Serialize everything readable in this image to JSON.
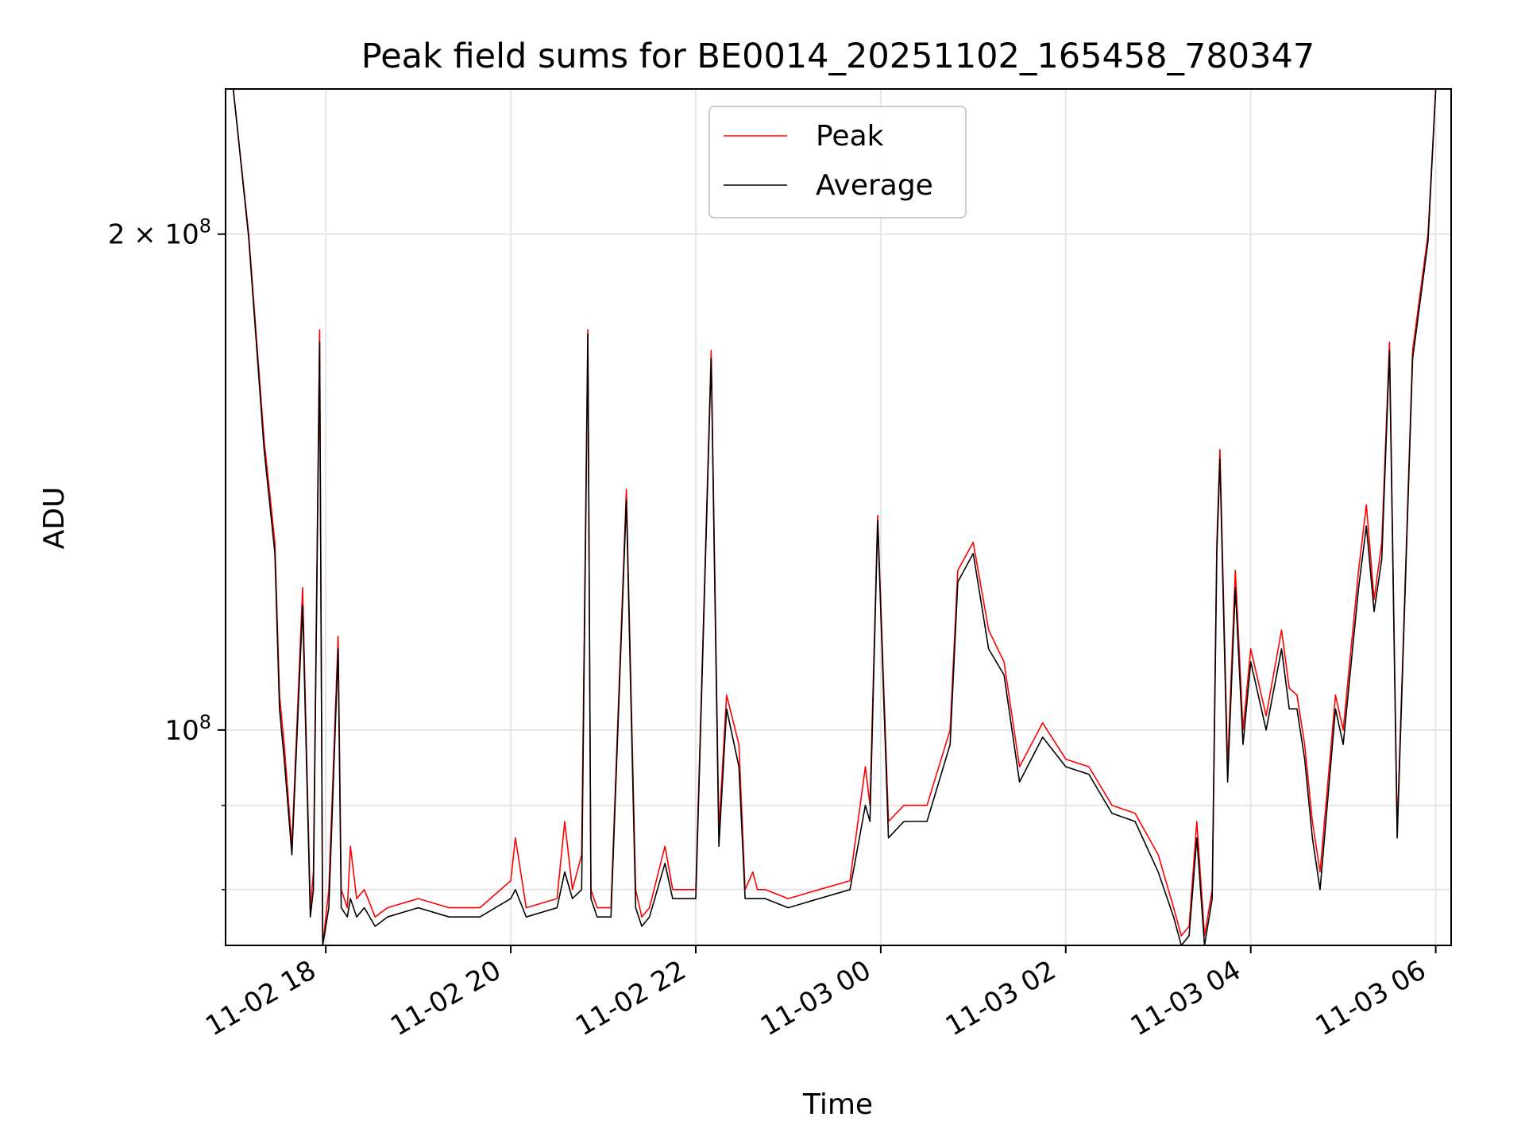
{
  "chart_data": {
    "type": "line",
    "title": "Peak field sums for BE0014_20251102_165458_780347",
    "xlabel": "Time",
    "ylabel": "ADU",
    "y_scale": "log",
    "ylim": [
      74000000,
      245000000
    ],
    "xlim": [
      "2025-11-02T16:55:00",
      "2025-11-03T06:10:00"
    ],
    "grid": true,
    "legend_position": "top-center",
    "x_ticks": [
      {
        "value": "2025-11-02T18:00:00",
        "label": "11-02 18"
      },
      {
        "value": "2025-11-02T20:00:00",
        "label": "11-02 20"
      },
      {
        "value": "2025-11-02T22:00:00",
        "label": "11-02 22"
      },
      {
        "value": "2025-11-03T00:00:00",
        "label": "11-03 00"
      },
      {
        "value": "2025-11-03T02:00:00",
        "label": "11-03 02"
      },
      {
        "value": "2025-11-03T04:00:00",
        "label": "11-03 04"
      },
      {
        "value": "2025-11-03T06:00:00",
        "label": "11-03 06"
      }
    ],
    "y_ticks": [
      {
        "value": 100000000,
        "label_base": "10",
        "label_exp": "8"
      },
      {
        "value": 200000000,
        "label_base": "2 × 10",
        "label_exp": "8"
      }
    ],
    "y_minor_gridlines": [
      80000000,
      90000000
    ],
    "series": [
      {
        "name": "Peak",
        "color": "#ff0000",
        "x": [
          "2025-11-02T17:00",
          "2025-11-02T17:10",
          "2025-11-02T17:20",
          "2025-11-02T17:27",
          "2025-11-02T17:30",
          "2025-11-02T17:33",
          "2025-11-02T17:38",
          "2025-11-02T17:45",
          "2025-11-02T17:50",
          "2025-11-02T17:52",
          "2025-11-02T17:56",
          "2025-11-02T17:58",
          "2025-11-02T18:02",
          "2025-11-02T18:08",
          "2025-11-02T18:10",
          "2025-11-02T18:14",
          "2025-11-02T18:16",
          "2025-11-02T18:20",
          "2025-11-02T18:25",
          "2025-11-02T18:32",
          "2025-11-02T18:40",
          "2025-11-02T19:00",
          "2025-11-02T19:20",
          "2025-11-02T19:40",
          "2025-11-02T20:00",
          "2025-11-02T20:03",
          "2025-11-02T20:10",
          "2025-11-02T20:30",
          "2025-11-02T20:35",
          "2025-11-02T20:40",
          "2025-11-02T20:46",
          "2025-11-02T20:50",
          "2025-11-02T20:52",
          "2025-11-02T20:56",
          "2025-11-02T21:05",
          "2025-11-02T21:15",
          "2025-11-02T21:21",
          "2025-11-02T21:25",
          "2025-11-02T21:30",
          "2025-11-02T21:40",
          "2025-11-02T21:45",
          "2025-11-02T21:50",
          "2025-11-02T22:00",
          "2025-11-02T22:10",
          "2025-11-02T22:15",
          "2025-11-02T22:20",
          "2025-11-02T22:28",
          "2025-11-02T22:32",
          "2025-11-02T22:37",
          "2025-11-02T22:40",
          "2025-11-02T22:45",
          "2025-11-02T23:00",
          "2025-11-02T23:20",
          "2025-11-02T23:40",
          "2025-11-02T23:50",
          "2025-11-02T23:53",
          "2025-11-02T23:58",
          "2025-11-03T00:05",
          "2025-11-03T00:15",
          "2025-11-03T00:30",
          "2025-11-03T00:45",
          "2025-11-03T00:50",
          "2025-11-03T01:00",
          "2025-11-03T01:10",
          "2025-11-03T01:20",
          "2025-11-03T01:30",
          "2025-11-03T01:45",
          "2025-11-03T02:00",
          "2025-11-03T02:15",
          "2025-11-03T02:30",
          "2025-11-03T02:45",
          "2025-11-03T03:00",
          "2025-11-03T03:10",
          "2025-11-03T03:15",
          "2025-11-03T03:20",
          "2025-11-03T03:25",
          "2025-11-03T03:30",
          "2025-11-03T03:35",
          "2025-11-03T03:38",
          "2025-11-03T03:40",
          "2025-11-03T03:45",
          "2025-11-03T03:50",
          "2025-11-03T03:55",
          "2025-11-03T04:00",
          "2025-11-03T04:10",
          "2025-11-03T04:20",
          "2025-11-03T04:25",
          "2025-11-03T04:30",
          "2025-11-03T04:35",
          "2025-11-03T04:40",
          "2025-11-03T04:45",
          "2025-11-03T04:55",
          "2025-11-03T05:00",
          "2025-11-03T05:10",
          "2025-11-03T05:15",
          "2025-11-03T05:20",
          "2025-11-03T05:25",
          "2025-11-03T05:30",
          "2025-11-03T05:35",
          "2025-11-03T05:45",
          "2025-11-03T05:55",
          "2025-11-03T06:00"
        ],
        "y": [
          245000000,
          200000000,
          150000000,
          130000000,
          105000000,
          98000000,
          85000000,
          122000000,
          78000000,
          82000000,
          175000000,
          74000000,
          80000000,
          114000000,
          80000000,
          78000000,
          85000000,
          79000000,
          80000000,
          77000000,
          78000000,
          79000000,
          78000000,
          78000000,
          81000000,
          86000000,
          78000000,
          79000000,
          88000000,
          80000000,
          84000000,
          175000000,
          80000000,
          78000000,
          78000000,
          140000000,
          80000000,
          77000000,
          78000000,
          85000000,
          80000000,
          80000000,
          80000000,
          170000000,
          87000000,
          105000000,
          98000000,
          80000000,
          82000000,
          80000000,
          80000000,
          79000000,
          80000000,
          81000000,
          95000000,
          90000000,
          135000000,
          88000000,
          90000000,
          90000000,
          100000000,
          125000000,
          130000000,
          115000000,
          110000000,
          95000000,
          101000000,
          96000000,
          95000000,
          90000000,
          89000000,
          84000000,
          78000000,
          75000000,
          76000000,
          88000000,
          75000000,
          80000000,
          130000000,
          148000000,
          95000000,
          125000000,
          100000000,
          112000000,
          102000000,
          115000000,
          106000000,
          105000000,
          98000000,
          88000000,
          82000000,
          105000000,
          100000000,
          125000000,
          137000000,
          120000000,
          130000000,
          172000000,
          87000000,
          170000000,
          200000000,
          245000000
        ]
      },
      {
        "name": "Average",
        "color": "#000000",
        "x": [
          "2025-11-02T17:00",
          "2025-11-02T17:10",
          "2025-11-02T17:20",
          "2025-11-02T17:27",
          "2025-11-02T17:30",
          "2025-11-02T17:33",
          "2025-11-02T17:38",
          "2025-11-02T17:45",
          "2025-11-02T17:50",
          "2025-11-02T17:52",
          "2025-11-02T17:56",
          "2025-11-02T17:58",
          "2025-11-02T18:02",
          "2025-11-02T18:08",
          "2025-11-02T18:10",
          "2025-11-02T18:14",
          "2025-11-02T18:16",
          "2025-11-02T18:20",
          "2025-11-02T18:25",
          "2025-11-02T18:32",
          "2025-11-02T18:40",
          "2025-11-02T19:00",
          "2025-11-02T19:20",
          "2025-11-02T19:40",
          "2025-11-02T20:00",
          "2025-11-02T20:03",
          "2025-11-02T20:10",
          "2025-11-02T20:30",
          "2025-11-02T20:35",
          "2025-11-02T20:40",
          "2025-11-02T20:46",
          "2025-11-02T20:50",
          "2025-11-02T20:52",
          "2025-11-02T20:56",
          "2025-11-02T21:05",
          "2025-11-02T21:15",
          "2025-11-02T21:21",
          "2025-11-02T21:25",
          "2025-11-02T21:30",
          "2025-11-02T21:40",
          "2025-11-02T21:45",
          "2025-11-02T21:50",
          "2025-11-02T22:00",
          "2025-11-02T22:10",
          "2025-11-02T22:15",
          "2025-11-02T22:20",
          "2025-11-02T22:28",
          "2025-11-02T22:32",
          "2025-11-02T22:37",
          "2025-11-02T22:40",
          "2025-11-02T22:45",
          "2025-11-02T23:00",
          "2025-11-02T23:20",
          "2025-11-02T23:40",
          "2025-11-02T23:50",
          "2025-11-02T23:53",
          "2025-11-02T23:58",
          "2025-11-03T00:05",
          "2025-11-03T00:15",
          "2025-11-03T00:30",
          "2025-11-03T00:45",
          "2025-11-03T00:50",
          "2025-11-03T01:00",
          "2025-11-03T01:10",
          "2025-11-03T01:20",
          "2025-11-03T01:30",
          "2025-11-03T01:45",
          "2025-11-03T02:00",
          "2025-11-03T02:15",
          "2025-11-03T02:30",
          "2025-11-03T02:45",
          "2025-11-03T03:00",
          "2025-11-03T03:10",
          "2025-11-03T03:15",
          "2025-11-03T03:20",
          "2025-11-03T03:25",
          "2025-11-03T03:30",
          "2025-11-03T03:35",
          "2025-11-03T03:38",
          "2025-11-03T03:40",
          "2025-11-03T03:45",
          "2025-11-03T03:50",
          "2025-11-03T03:55",
          "2025-11-03T04:00",
          "2025-11-03T04:10",
          "2025-11-03T04:20",
          "2025-11-03T04:25",
          "2025-11-03T04:30",
          "2025-11-03T04:35",
          "2025-11-03T04:40",
          "2025-11-03T04:45",
          "2025-11-03T04:55",
          "2025-11-03T05:00",
          "2025-11-03T05:10",
          "2025-11-03T05:15",
          "2025-11-03T05:20",
          "2025-11-03T05:25",
          "2025-11-03T05:30",
          "2025-11-03T05:35",
          "2025-11-03T05:45",
          "2025-11-03T05:55",
          "2025-11-03T06:00"
        ],
        "y": [
          245000000,
          199000000,
          148000000,
          128000000,
          103000000,
          96000000,
          84000000,
          119000000,
          77000000,
          80000000,
          172000000,
          74000000,
          78000000,
          112000000,
          78000000,
          77000000,
          79000000,
          77000000,
          78000000,
          76000000,
          77000000,
          78000000,
          77000000,
          77000000,
          79000000,
          80000000,
          77000000,
          78000000,
          82000000,
          79000000,
          80000000,
          174000000,
          79000000,
          77000000,
          77000000,
          138000000,
          78000000,
          76000000,
          77000000,
          83000000,
          79000000,
          79000000,
          79000000,
          168000000,
          85000000,
          103000000,
          95000000,
          79000000,
          79000000,
          79000000,
          79000000,
          78000000,
          79000000,
          80000000,
          90000000,
          88000000,
          134000000,
          86000000,
          88000000,
          88000000,
          98000000,
          123000000,
          128000000,
          112000000,
          108000000,
          93000000,
          99000000,
          95000000,
          94000000,
          89000000,
          88000000,
          82000000,
          77000000,
          74000000,
          75000000,
          86000000,
          74000000,
          79000000,
          128000000,
          146000000,
          93000000,
          122000000,
          98000000,
          110000000,
          100000000,
          112000000,
          103000000,
          103000000,
          96000000,
          86000000,
          80000000,
          103000000,
          98000000,
          122000000,
          133000000,
          118000000,
          127000000,
          170000000,
          86000000,
          168000000,
          198000000,
          245000000
        ]
      }
    ]
  }
}
